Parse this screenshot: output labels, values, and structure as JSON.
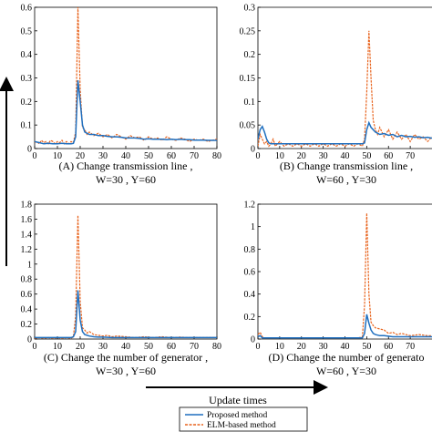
{
  "chart_data": [
    {
      "type": "line",
      "caption": "(A) Change transmission line ,",
      "caption_sub": "W=30 , Y=60",
      "xlim": [
        0,
        80
      ],
      "ylim": [
        0,
        0.6
      ],
      "xticks": [
        0,
        10,
        20,
        30,
        40,
        50,
        60,
        70,
        80
      ],
      "yticks": [
        0,
        0.1,
        0.2,
        0.3,
        0.4,
        0.5,
        0.6
      ],
      "series": [
        {
          "name": "Proposed method",
          "color": "#1f6fbf",
          "x": [
            0,
            2,
            4,
            6,
            8,
            10,
            12,
            14,
            16,
            17,
            18,
            19,
            20,
            21,
            22,
            24,
            26,
            28,
            30,
            32,
            34,
            36,
            38,
            40,
            42,
            44,
            46,
            48,
            50,
            52,
            54,
            56,
            58,
            60,
            62,
            64,
            66,
            68,
            70,
            72,
            74,
            76,
            78,
            80
          ],
          "y": [
            0.03,
            0.025,
            0.02,
            0.022,
            0.02,
            0.02,
            0.022,
            0.02,
            0.02,
            0.022,
            0.05,
            0.29,
            0.2,
            0.1,
            0.07,
            0.06,
            0.06,
            0.055,
            0.055,
            0.052,
            0.05,
            0.05,
            0.048,
            0.045,
            0.045,
            0.045,
            0.043,
            0.04,
            0.042,
            0.04,
            0.04,
            0.04,
            0.038,
            0.04,
            0.038,
            0.04,
            0.038,
            0.038,
            0.036,
            0.036,
            0.036,
            0.035,
            0.035,
            0.035
          ]
        },
        {
          "name": "ELM-based method",
          "color": "#e8641e",
          "x": [
            0,
            1,
            2,
            3,
            4,
            5,
            6,
            7,
            8,
            9,
            10,
            11,
            12,
            13,
            14,
            15,
            16,
            17,
            18,
            19,
            20,
            21,
            22,
            23,
            24,
            26,
            28,
            30,
            32,
            34,
            36,
            38,
            40,
            42,
            44,
            46,
            48,
            50,
            52,
            54,
            56,
            58,
            60,
            62,
            64,
            66,
            68,
            70,
            72,
            74,
            76,
            78,
            80
          ],
          "y": [
            0.025,
            0.03,
            0.02,
            0.035,
            0.025,
            0.03,
            0.02,
            0.035,
            0.03,
            0.02,
            0.03,
            0.025,
            0.035,
            0.02,
            0.03,
            0.02,
            0.03,
            0.025,
            0.07,
            0.6,
            0.25,
            0.09,
            0.08,
            0.06,
            0.07,
            0.055,
            0.065,
            0.05,
            0.06,
            0.045,
            0.06,
            0.05,
            0.04,
            0.055,
            0.045,
            0.05,
            0.035,
            0.05,
            0.04,
            0.045,
            0.035,
            0.05,
            0.04,
            0.035,
            0.045,
            0.04,
            0.03,
            0.04,
            0.035,
            0.04,
            0.03,
            0.035,
            0.04
          ]
        }
      ]
    },
    {
      "type": "line",
      "caption": "(B) Change transmission line ,",
      "caption_sub": "W=60 , Y=30",
      "xlim": [
        0,
        80
      ],
      "ylim": [
        0,
        0.3
      ],
      "xticks": [
        0,
        10,
        20,
        30,
        40,
        50,
        60,
        70
      ],
      "yticks": [
        0,
        0.05,
        0.1,
        0.15,
        0.2,
        0.25,
        0.3
      ],
      "series": [
        {
          "name": "Proposed method",
          "color": "#1f6fbf",
          "x": [
            0,
            1,
            2,
            3,
            4,
            5,
            6,
            8,
            10,
            12,
            14,
            16,
            18,
            20,
            22,
            24,
            26,
            28,
            30,
            32,
            34,
            36,
            38,
            40,
            42,
            44,
            46,
            48,
            49,
            50,
            51,
            52,
            53,
            54,
            56,
            58,
            60,
            62,
            64,
            66,
            68,
            70,
            72,
            74,
            76,
            78,
            80
          ],
          "y": [
            0.02,
            0.04,
            0.047,
            0.035,
            0.02,
            0.012,
            0.01,
            0.01,
            0.01,
            0.01,
            0.01,
            0.01,
            0.01,
            0.01,
            0.01,
            0.01,
            0.01,
            0.01,
            0.01,
            0.01,
            0.01,
            0.01,
            0.01,
            0.01,
            0.01,
            0.01,
            0.01,
            0.01,
            0.012,
            0.04,
            0.055,
            0.045,
            0.04,
            0.035,
            0.03,
            0.032,
            0.028,
            0.03,
            0.025,
            0.028,
            0.025,
            0.026,
            0.024,
            0.025,
            0.023,
            0.024,
            0.022
          ]
        },
        {
          "name": "ELM-based method",
          "color": "#e8641e",
          "x": [
            0,
            1,
            2,
            3,
            4,
            5,
            6,
            7,
            8,
            9,
            10,
            12,
            14,
            16,
            18,
            20,
            22,
            24,
            26,
            28,
            30,
            32,
            34,
            36,
            38,
            40,
            42,
            44,
            46,
            48,
            49,
            50,
            51,
            52,
            53,
            54,
            55,
            56,
            58,
            60,
            62,
            64,
            66,
            68,
            70,
            72,
            74,
            76,
            78,
            80
          ],
          "y": [
            0.005,
            0.03,
            0.02,
            0.01,
            0.015,
            0.005,
            0.01,
            0.02,
            0.005,
            0.01,
            0.015,
            0.005,
            0.01,
            0.005,
            0.01,
            0.005,
            0.01,
            0.005,
            0.01,
            0.005,
            0.01,
            0.005,
            0.01,
            0.005,
            0.01,
            0.005,
            0.01,
            0.005,
            0.01,
            0.005,
            0.02,
            0.12,
            0.25,
            0.15,
            0.06,
            0.04,
            0.03,
            0.045,
            0.025,
            0.04,
            0.02,
            0.035,
            0.02,
            0.03,
            0.015,
            0.03,
            0.02,
            0.025,
            0.015,
            0.025
          ]
        }
      ]
    },
    {
      "type": "line",
      "caption": "(C) Change the number of generator ,",
      "caption_sub": "W=30 , Y=60",
      "xlim": [
        0,
        80
      ],
      "ylim": [
        0,
        1.8
      ],
      "xticks": [
        0,
        10,
        20,
        30,
        40,
        50,
        60,
        70,
        80
      ],
      "yticks": [
        0,
        0.2,
        0.4,
        0.6,
        0.8,
        1,
        1.2,
        1.4,
        1.6,
        1.8
      ],
      "series": [
        {
          "name": "Proposed method",
          "color": "#1f6fbf",
          "x": [
            0,
            2,
            4,
            6,
            8,
            10,
            12,
            14,
            16,
            17,
            18,
            19,
            20,
            21,
            22,
            24,
            26,
            28,
            30,
            34,
            38,
            42,
            46,
            50,
            54,
            58,
            62,
            66,
            70,
            74,
            78,
            80
          ],
          "y": [
            0.02,
            0.02,
            0.02,
            0.02,
            0.02,
            0.02,
            0.02,
            0.02,
            0.02,
            0.03,
            0.1,
            0.65,
            0.25,
            0.1,
            0.06,
            0.04,
            0.03,
            0.025,
            0.025,
            0.02,
            0.02,
            0.02,
            0.02,
            0.02,
            0.02,
            0.02,
            0.02,
            0.02,
            0.02,
            0.02,
            0.02,
            0.02
          ]
        },
        {
          "name": "ELM-based method",
          "color": "#e8641e",
          "x": [
            0,
            2,
            4,
            6,
            8,
            10,
            12,
            14,
            16,
            17,
            18,
            19,
            20,
            21,
            22,
            23,
            24,
            26,
            28,
            30,
            32,
            34,
            36,
            40,
            44,
            48,
            52,
            56,
            60,
            64,
            68,
            72,
            76,
            80
          ],
          "y": [
            0.01,
            0.02,
            0.01,
            0.02,
            0.01,
            0.02,
            0.01,
            0.02,
            0.01,
            0.03,
            0.3,
            1.65,
            0.5,
            0.15,
            0.12,
            0.08,
            0.1,
            0.06,
            0.05,
            0.04,
            0.05,
            0.03,
            0.04,
            0.03,
            0.02,
            0.03,
            0.02,
            0.03,
            0.02,
            0.025,
            0.02,
            0.02,
            0.02,
            0.02
          ]
        }
      ]
    },
    {
      "type": "line",
      "caption": "(D) Change the number of generato",
      "caption_sub": "W=60 , Y=30",
      "xlim": [
        0,
        80
      ],
      "ylim": [
        0,
        1.2
      ],
      "xticks": [
        0,
        10,
        20,
        30,
        40,
        50,
        60,
        70
      ],
      "yticks": [
        0,
        0.2,
        0.4,
        0.6,
        0.8,
        1,
        1.2
      ],
      "series": [
        {
          "name": "Proposed method",
          "color": "#1f6fbf",
          "x": [
            0,
            1,
            2,
            4,
            6,
            10,
            14,
            18,
            22,
            26,
            30,
            34,
            38,
            42,
            46,
            48,
            49,
            50,
            51,
            52,
            53,
            54,
            56,
            58,
            60,
            62,
            66,
            70,
            74,
            78,
            80
          ],
          "y": [
            0.02,
            0.03,
            0.01,
            0.01,
            0.01,
            0.01,
            0.01,
            0.01,
            0.01,
            0.01,
            0.01,
            0.01,
            0.01,
            0.01,
            0.01,
            0.01,
            0.05,
            0.22,
            0.14,
            0.08,
            0.05,
            0.04,
            0.03,
            0.03,
            0.025,
            0.02,
            0.02,
            0.02,
            0.02,
            0.02,
            0.02
          ]
        },
        {
          "name": "ELM-based method",
          "color": "#e8641e",
          "x": [
            0,
            1,
            2,
            3,
            4,
            6,
            10,
            14,
            18,
            22,
            26,
            30,
            34,
            38,
            42,
            46,
            48,
            49,
            50,
            51,
            52,
            53,
            54,
            56,
            58,
            60,
            62,
            64,
            66,
            70,
            74,
            78,
            80
          ],
          "y": [
            0.04,
            0.06,
            0.02,
            0.01,
            0.01,
            0.01,
            0.01,
            0.01,
            0.01,
            0.01,
            0.01,
            0.01,
            0.01,
            0.01,
            0.01,
            0.01,
            0.02,
            0.3,
            1.12,
            0.4,
            0.15,
            0.12,
            0.1,
            0.09,
            0.08,
            0.05,
            0.06,
            0.04,
            0.05,
            0.03,
            0.04,
            0.03,
            0.03
          ]
        }
      ]
    }
  ],
  "xlabel": "Update times",
  "legend": {
    "items": [
      {
        "name": "Proposed method",
        "color": "#1f6fbf",
        "dash": false
      },
      {
        "name": "ELM-based method",
        "color": "#e8641e",
        "dash": true
      }
    ]
  }
}
